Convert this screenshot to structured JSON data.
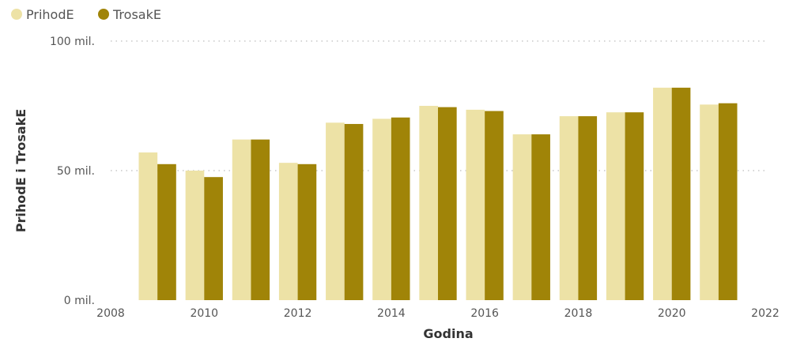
{
  "chart_data": {
    "type": "bar",
    "xlabel": "Godina",
    "ylabel": "PrihodE i TrosakE",
    "x": [
      2009,
      2010,
      2011,
      2012,
      2013,
      2014,
      2015,
      2016,
      2017,
      2018,
      2019,
      2020,
      2021
    ],
    "series": [
      {
        "name": "PrihodE",
        "color": "#ede2a6",
        "values": [
          57,
          50,
          62,
          53,
          68.5,
          70,
          75,
          73.5,
          64,
          71,
          72.5,
          82,
          75.5
        ]
      },
      {
        "name": "TrosakE",
        "color": "#a08408",
        "values": [
          52.5,
          47.5,
          62,
          52.5,
          68,
          70.5,
          74.5,
          73,
          64,
          71,
          72.5,
          82,
          76
        ]
      }
    ],
    "xlim": [
      2008,
      2022
    ],
    "x_ticks": [
      2008,
      2010,
      2012,
      2014,
      2016,
      2018,
      2020,
      2022
    ],
    "ylim": [
      0,
      100
    ],
    "y_ticks": [
      {
        "value": 0,
        "label": "0 mil."
      },
      {
        "value": 50,
        "label": "50 mil."
      },
      {
        "value": 100,
        "label": "100 mil."
      }
    ],
    "grid": true,
    "legend_position": "top-left"
  }
}
